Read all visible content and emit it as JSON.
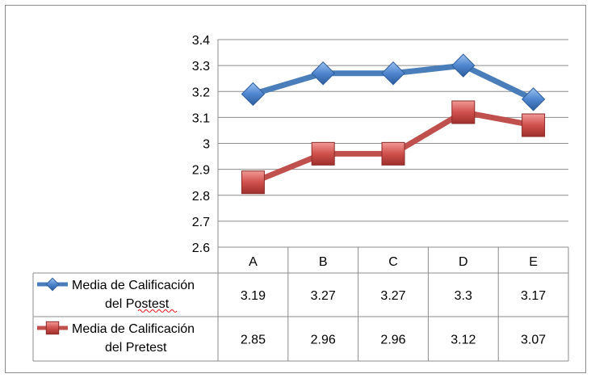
{
  "chart_data": {
    "type": "line",
    "categories": [
      "A",
      "B",
      "C",
      "D",
      "E"
    ],
    "series": [
      {
        "name": "Media de Calificación del Postest",
        "name_lines": [
          "Media de Calificación",
          "del Postest"
        ],
        "values": [
          3.19,
          3.27,
          3.27,
          3.3,
          3.17
        ],
        "value_labels": [
          "3.19",
          "3.27",
          "3.27",
          "3.3",
          "3.17"
        ],
        "color": "#4a7ebb",
        "marker": "diamond"
      },
      {
        "name": "Media de Calificación del Pretest",
        "name_lines": [
          "Media de Calificación",
          "del Pretest"
        ],
        "values": [
          2.85,
          2.96,
          2.96,
          3.12,
          3.07
        ],
        "value_labels": [
          "2.85",
          "2.96",
          "2.96",
          "3.12",
          "3.07"
        ],
        "color": "#c0504d",
        "marker": "square"
      }
    ],
    "ylim": [
      2.6,
      3.4
    ],
    "yticks": [
      2.6,
      2.7,
      2.8,
      2.9,
      3.0,
      3.1,
      3.2,
      3.3,
      3.4
    ],
    "ytick_labels": [
      "2.6",
      "2.7",
      "2.8",
      "2.9",
      "3",
      "3.1",
      "3.2",
      "3.3",
      "3.4"
    ],
    "grid": true,
    "legend": "data-table"
  }
}
